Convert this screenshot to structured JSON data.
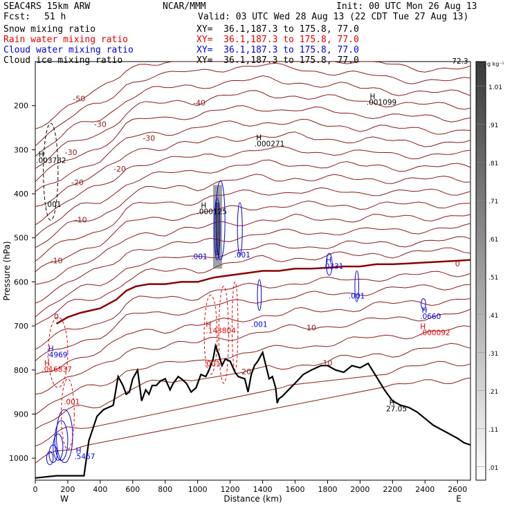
{
  "header": {
    "model": "SEAC4RS 15km ARW",
    "center": "NCAR/MMM",
    "init": "Init: 00 UTC Mon 26 Aug 13",
    "fcst_label": "Fcst:",
    "fcst_value": "51 h",
    "valid": "Valid: 03 UTC Wed 28 Aug 13 (22 CDT Tue 27 Aug 13)"
  },
  "fields": [
    {
      "label": "Snow mixing ratio",
      "xy": "XY=  36.1,187.3 to 175.8, 77.0",
      "color": "#000000"
    },
    {
      "label": "Rain water mixing ratio",
      "xy": "XY=  36.1,187.3 to 175.8, 77.0",
      "color": "#e00000"
    },
    {
      "label": "Cloud water mixing ratio",
      "xy": "XY=  36.1,187.3 to 175.8, 77.0",
      "color": "#0000dd"
    },
    {
      "label": "Cloud ice mixing ratio",
      "xy": "XY=  36.1,187.3 to 175.8, 77.0",
      "color": "#000000"
    }
  ],
  "chart_data": {
    "type": "cross-section contour",
    "xlabel": "Distance (km)",
    "ylabel": "Pressure (hPa)",
    "xlim": [
      0,
      2680
    ],
    "ylim": [
      1050,
      100
    ],
    "x_ticks": [
      0,
      200,
      400,
      600,
      800,
      1000,
      1200,
      1400,
      1600,
      1800,
      2000,
      2200,
      2400,
      2600
    ],
    "y_ticks": [
      200,
      300,
      400,
      500,
      600,
      700,
      800,
      900,
      1000
    ],
    "y_tick_labels": [
      "200",
      "300",
      "400",
      "500",
      "600",
      "700",
      "800",
      "900",
      "1000"
    ],
    "endpoints": {
      "left": "W",
      "right": "E"
    },
    "colorbar": {
      "unit": "g kg⁻¹",
      "levels": [
        ".01",
        ".11",
        ".21",
        ".31",
        ".41",
        ".51",
        ".61",
        ".71",
        ".81",
        ".91",
        "1.01"
      ]
    },
    "temperature_labels": [
      "-50",
      "-40",
      "-30",
      "-20",
      "-10",
      "0",
      "10",
      "20"
    ],
    "terrain": [
      [
        0,
        1045
      ],
      [
        130,
        1040
      ],
      [
        300,
        1040
      ],
      [
        330,
        960
      ],
      [
        380,
        905
      ],
      [
        420,
        890
      ],
      [
        480,
        880
      ],
      [
        510,
        815
      ],
      [
        540,
        835
      ],
      [
        560,
        855
      ],
      [
        580,
        850
      ],
      [
        600,
        820
      ],
      [
        630,
        800
      ],
      [
        655,
        870
      ],
      [
        680,
        845
      ],
      [
        700,
        855
      ],
      [
        720,
        835
      ],
      [
        745,
        835
      ],
      [
        770,
        825
      ],
      [
        800,
        820
      ],
      [
        830,
        845
      ],
      [
        850,
        830
      ],
      [
        880,
        815
      ],
      [
        900,
        820
      ],
      [
        930,
        830
      ],
      [
        960,
        850
      ],
      [
        990,
        840
      ],
      [
        1020,
        810
      ],
      [
        1050,
        815
      ],
      [
        1070,
        800
      ],
      [
        1095,
        775
      ],
      [
        1110,
        745
      ],
      [
        1130,
        765
      ],
      [
        1150,
        790
      ],
      [
        1170,
        775
      ],
      [
        1200,
        780
      ],
      [
        1230,
        805
      ],
      [
        1250,
        815
      ],
      [
        1290,
        820
      ],
      [
        1310,
        850
      ],
      [
        1330,
        810
      ],
      [
        1350,
        790
      ],
      [
        1370,
        780
      ],
      [
        1400,
        760
      ],
      [
        1420,
        790
      ],
      [
        1440,
        820
      ],
      [
        1460,
        815
      ],
      [
        1480,
        840
      ],
      [
        1490,
        875
      ],
      [
        1500,
        865
      ],
      [
        1520,
        860
      ],
      [
        1560,
        845
      ],
      [
        1600,
        830
      ],
      [
        1650,
        810
      ],
      [
        1700,
        800
      ],
      [
        1760,
        790
      ],
      [
        1800,
        790
      ],
      [
        1850,
        800
      ],
      [
        1900,
        805
      ],
      [
        1950,
        790
      ],
      [
        2000,
        795
      ],
      [
        2050,
        785
      ],
      [
        2100,
        815
      ],
      [
        2150,
        845
      ],
      [
        2200,
        870
      ],
      [
        2250,
        880
      ],
      [
        2300,
        885
      ],
      [
        2350,
        895
      ],
      [
        2400,
        910
      ],
      [
        2450,
        925
      ],
      [
        2500,
        935
      ],
      [
        2550,
        945
      ],
      [
        2600,
        955
      ],
      [
        2640,
        965
      ],
      [
        2680,
        970
      ]
    ],
    "freezing_level_line": [
      [
        130,
        695
      ],
      [
        200,
        680
      ],
      [
        280,
        670
      ],
      [
        400,
        660
      ],
      [
        500,
        640
      ],
      [
        560,
        620
      ],
      [
        620,
        610
      ],
      [
        700,
        605
      ],
      [
        800,
        605
      ],
      [
        900,
        600
      ],
      [
        1000,
        600
      ],
      [
        1100,
        590
      ],
      [
        1200,
        585
      ],
      [
        1300,
        580
      ],
      [
        1400,
        575
      ],
      [
        1500,
        575
      ],
      [
        1600,
        570
      ],
      [
        1700,
        570
      ],
      [
        1800,
        568
      ],
      [
        1900,
        565
      ],
      [
        2000,
        565
      ],
      [
        2100,
        560
      ],
      [
        2200,
        560
      ],
      [
        2300,
        558
      ],
      [
        2400,
        556
      ],
      [
        2500,
        554
      ],
      [
        2600,
        552
      ],
      [
        2680,
        550
      ]
    ],
    "annotations": [
      {
        "text": "H",
        "x": 2060,
        "y": 185,
        "color": "#000000"
      },
      {
        "text": ".001099",
        "x": 2040,
        "y": 198,
        "color": "#000000"
      },
      {
        "text": "H",
        "x": 1360,
        "y": 278,
        "color": "#000000"
      },
      {
        "text": ".000271",
        "x": 1350,
        "y": 292,
        "color": "#000000"
      },
      {
        "text": "H",
        "x": 20,
        "y": 316,
        "color": "#000000"
      },
      {
        "text": ".003782",
        "x": 5,
        "y": 330,
        "color": "#000000"
      },
      {
        "text": ".001",
        "x": 60,
        "y": 430,
        "color": "#000000"
      },
      {
        "text": "H",
        "x": 1020,
        "y": 432,
        "color": "#000000"
      },
      {
        "text": ".000125",
        "x": 995,
        "y": 446,
        "color": "#000000"
      },
      {
        "text": "H",
        "x": 1790,
        "y": 556,
        "color": "#0000dd"
      },
      {
        "text": ".0331",
        "x": 1770,
        "y": 570,
        "color": "#0000dd"
      },
      {
        "text": ".001",
        "x": 1930,
        "y": 638,
        "color": "#0000dd"
      },
      {
        "text": "H",
        "x": 2380,
        "y": 670,
        "color": "#0000dd"
      },
      {
        "text": ".0660",
        "x": 2370,
        "y": 684,
        "color": "#0000dd"
      },
      {
        "text": "H",
        "x": 2370,
        "y": 707,
        "color": "#e00000"
      },
      {
        "text": ".000092",
        "x": 2370,
        "y": 721,
        "color": "#e00000"
      },
      {
        "text": ".001",
        "x": 960,
        "y": 548,
        "color": "#0000dd"
      },
      {
        "text": ".001",
        "x": 1225,
        "y": 544,
        "color": "#0000dd"
      },
      {
        "text": ".001",
        "x": 1330,
        "y": 702,
        "color": "#0000dd"
      },
      {
        "text": "H",
        "x": 1050,
        "y": 702,
        "color": "#e00000"
      },
      {
        "text": ".143804",
        "x": 1050,
        "y": 716,
        "color": "#e00000"
      },
      {
        "text": ".001",
        "x": 1040,
        "y": 792,
        "color": "#e00000"
      },
      {
        "text": "H",
        "x": 80,
        "y": 757,
        "color": "#0000dd"
      },
      {
        "text": ".4969",
        "x": 70,
        "y": 771,
        "color": "#0000dd"
      },
      {
        "text": "H",
        "x": 55,
        "y": 790,
        "color": "#e00000"
      },
      {
        "text": ".016837",
        "x": 40,
        "y": 804,
        "color": "#e00000"
      },
      {
        "text": ".001",
        "x": 175,
        "y": 878,
        "color": "#e00000"
      },
      {
        "text": "H",
        "x": 250,
        "y": 988,
        "color": "#0000dd"
      },
      {
        "text": ".5467",
        "x": 240,
        "y": 1002,
        "color": "#0000dd"
      },
      {
        "text": "H",
        "x": 2180,
        "y": 880,
        "color": "#000000"
      },
      {
        "text": "27.05",
        "x": 2160,
        "y": 894,
        "color": "#000000"
      },
      {
        "text": "-72.3",
        "x": 2550,
        "y": 105,
        "color": "#000000"
      }
    ]
  }
}
